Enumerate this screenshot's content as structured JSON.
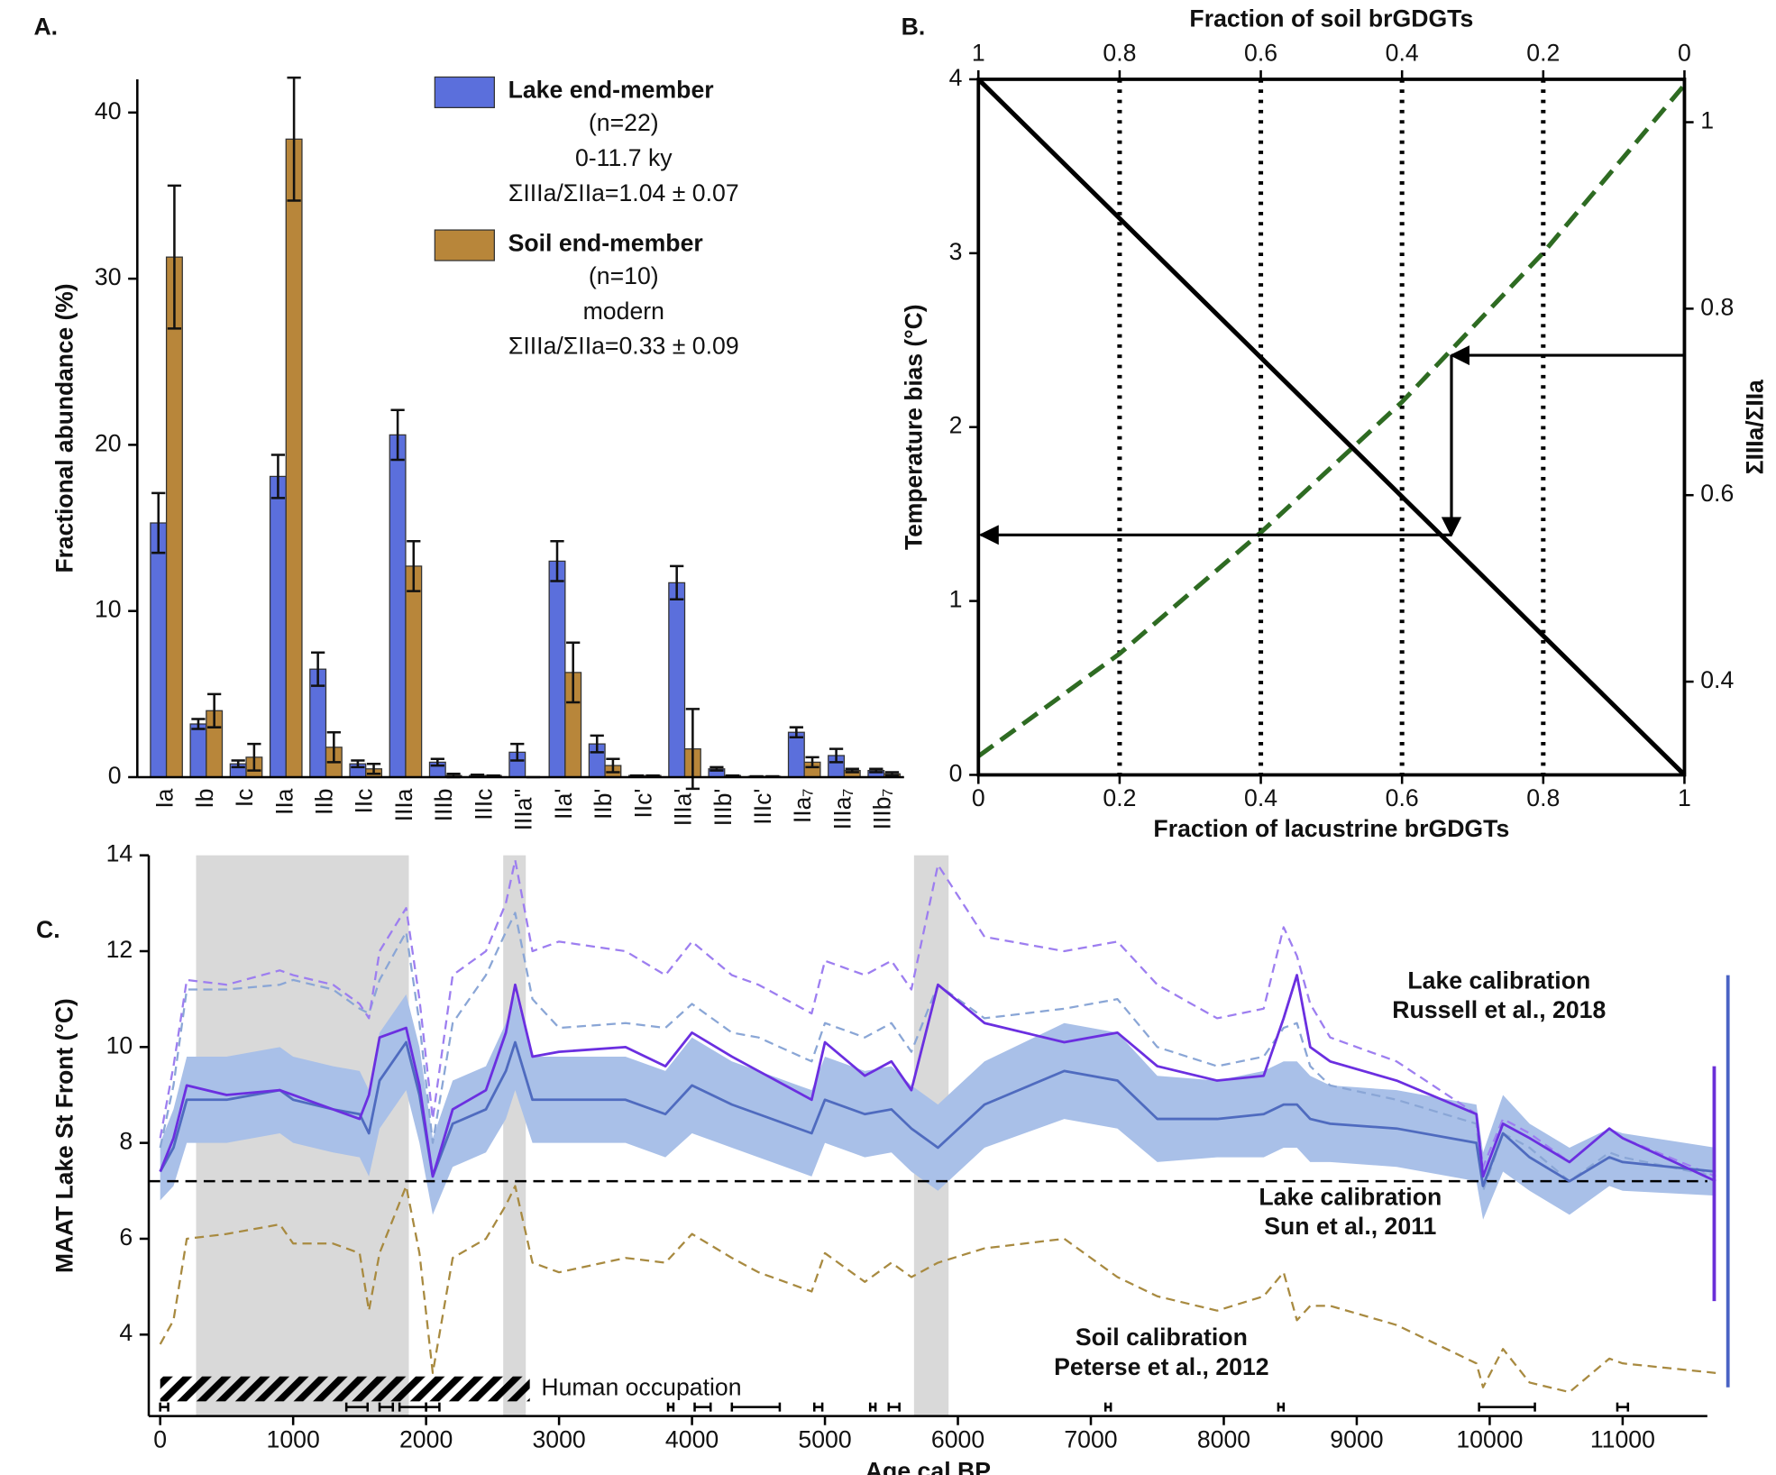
{
  "chart_data": [
    {
      "type": "bar",
      "panel": "A.",
      "ylabel": "Fractional abundance (%)",
      "categories": [
        "Ia",
        "Ib",
        "Ic",
        "IIa",
        "IIb",
        "IIc",
        "IIIa",
        "IIIb",
        "IIIc",
        "IIIa''",
        "IIa'",
        "IIb'",
        "IIc'",
        "IIIa'",
        "IIIb'",
        "IIIc'",
        "IIa₇",
        "IIIa₇",
        "IIIb₇"
      ],
      "series": [
        {
          "name": "Lake end-member",
          "details": [
            "(n=22)",
            "0-11.7 ky",
            "ΣIIIa/ΣIIa=1.04 ± 0.07"
          ],
          "color": "#5b6fdc",
          "values": [
            15.3,
            3.2,
            0.8,
            18.1,
            6.5,
            0.8,
            20.6,
            0.9,
            0.1,
            1.5,
            13.0,
            2.0,
            0.1,
            11.7,
            0.5,
            0.05,
            2.7,
            1.3,
            0.4
          ],
          "errors": [
            1.8,
            0.3,
            0.2,
            1.3,
            1.0,
            0.2,
            1.5,
            0.2,
            0.05,
            0.5,
            1.2,
            0.5,
            0,
            1.0,
            0.1,
            0,
            0.3,
            0.4,
            0.1
          ]
        },
        {
          "name": "Soil end-member",
          "details": [
            "(n=10)",
            "modern",
            "ΣIIIa/ΣIIa=0.33 ± 0.09"
          ],
          "color": "#b8863a",
          "values": [
            31.3,
            4.0,
            1.2,
            38.4,
            1.8,
            0.5,
            12.7,
            0.1,
            0.1,
            0,
            6.3,
            0.7,
            0.1,
            1.7,
            0.1,
            0.05,
            0.9,
            0.4,
            0.2
          ],
          "errors": [
            4.3,
            1.0,
            0.8,
            3.7,
            0.9,
            0.3,
            1.5,
            0.1,
            0,
            0,
            1.8,
            0.4,
            0,
            2.4,
            0,
            0,
            0.3,
            0.1,
            0.1
          ]
        }
      ],
      "ylim": [
        0,
        42
      ],
      "yticks": [
        0,
        10,
        20,
        30,
        40
      ]
    },
    {
      "type": "line",
      "panel": "B.",
      "frame": true,
      "grid": "dotted",
      "xlabel": "Fraction of lacustrine brGDGTs",
      "x2label": "Fraction of soil brGDGTs",
      "ylabel": "Temperature bias (°C)",
      "y2label": "ΣIIIa/ΣIIa",
      "y2color": "#2e6b22",
      "x": [
        0,
        0.2,
        0.4,
        0.6,
        0.8,
        1
      ],
      "series": [
        {
          "color": "#000000",
          "values": [
            4,
            3.2,
            2.4,
            1.6,
            0.8,
            0
          ]
        },
        {
          "color": "#2e6b22",
          "dash": true,
          "axis": "y2",
          "values": [
            0.32,
            0.43,
            0.56,
            0.7,
            0.86,
            1.04
          ]
        }
      ],
      "xlim": [
        0,
        1
      ],
      "xticks": [
        0,
        0.2,
        0.4,
        0.6,
        0.8,
        1
      ],
      "x2lim": [
        1,
        0
      ],
      "x2ticks": [
        1,
        0.8,
        0.6,
        0.4,
        0.2,
        0
      ],
      "ylim": [
        0,
        4
      ],
      "yticks": [
        0,
        1,
        2,
        3,
        4
      ],
      "y2lim": [
        0.3,
        1.046
      ],
      "y2ticks": [
        0.4,
        0.6,
        0.8,
        1
      ],
      "arrow": {
        "y2": 0.75,
        "x": 0.67,
        "y": 1.38
      }
    },
    {
      "type": "line",
      "panel": "C.",
      "xlabel": "Age cal BP",
      "ylabel": "MAAT Lake St Front (°C)",
      "x": [
        0,
        100,
        200,
        500,
        900,
        1000,
        1300,
        1500,
        1570,
        1650,
        1850,
        1950,
        2050,
        2200,
        2450,
        2600,
        2670,
        2800,
        3000,
        3500,
        3800,
        4000,
        4300,
        4500,
        4900,
        5000,
        5300,
        5500,
        5650,
        5850,
        6200,
        6800,
        7200,
        7500,
        7950,
        8300,
        8450,
        8550,
        8650,
        8800,
        9300,
        9900,
        9950,
        10100,
        10300,
        10600,
        10900,
        11000,
        11700
      ],
      "series": [
        {
          "label_lines": [
            "Lake calibration",
            "Sun et al., 2011"
          ],
          "color": "#4f6bbf",
          "band_color": "#a9c0e8",
          "values": [
            7.4,
            7.9,
            8.9,
            8.9,
            9.1,
            8.9,
            8.7,
            8.6,
            8.2,
            9.3,
            10.1,
            9.0,
            7.3,
            8.4,
            8.7,
            9.5,
            10.1,
            8.9,
            8.9,
            8.9,
            8.6,
            9.2,
            8.8,
            8.6,
            8.2,
            8.9,
            8.6,
            8.7,
            8.3,
            7.9,
            8.8,
            9.5,
            9.3,
            8.5,
            8.5,
            8.6,
            8.8,
            8.8,
            8.5,
            8.4,
            8.3,
            8.0,
            7.1,
            8.2,
            7.7,
            7.2,
            7.7,
            7.6,
            7.4
          ],
          "errors": [
            0.6,
            0.8,
            0.9,
            0.9,
            0.9,
            0.9,
            0.9,
            0.9,
            0.9,
            1.0,
            1.0,
            1.0,
            0.8,
            0.9,
            0.9,
            1.0,
            1.0,
            0.9,
            0.9,
            0.9,
            0.9,
            1.0,
            0.9,
            0.9,
            0.9,
            0.9,
            0.9,
            0.9,
            0.9,
            0.9,
            0.9,
            1.0,
            1.0,
            0.9,
            0.8,
            0.9,
            0.9,
            0.9,
            0.9,
            0.8,
            0.8,
            0.8,
            0.7,
            0.8,
            0.7,
            0.7,
            0.6,
            0.6,
            0.5
          ]
        },
        {
          "color": "#8aa6d6",
          "dash": true,
          "values": [
            7.9,
            9.2,
            11.2,
            11.2,
            11.3,
            11.4,
            11.2,
            10.8,
            10.7,
            11.4,
            12.4,
            10.5,
            8.0,
            10.5,
            11.5,
            12.4,
            12.8,
            11.0,
            10.4,
            10.5,
            10.4,
            10.9,
            10.3,
            10.2,
            9.7,
            10.5,
            10.2,
            10.5,
            9.9,
            11.3,
            10.6,
            10.8,
            11.0,
            10.0,
            9.6,
            9.8,
            10.4,
            10.5,
            9.6,
            9.2,
            8.9,
            8.4,
            7.0,
            8.2,
            7.9,
            7.2,
            7.8,
            7.7,
            7.3
          ]
        },
        {
          "color": "#9d7ef0",
          "dash": true,
          "values": [
            8.1,
            9.6,
            11.4,
            11.3,
            11.6,
            11.5,
            11.3,
            10.9,
            10.6,
            12.0,
            12.9,
            11.0,
            8.5,
            11.5,
            12.0,
            13.0,
            13.9,
            12.0,
            12.2,
            12.0,
            11.5,
            12.2,
            11.5,
            11.3,
            10.7,
            11.8,
            11.5,
            11.8,
            11.2,
            13.8,
            12.3,
            12.0,
            12.2,
            11.3,
            10.6,
            10.8,
            12.5,
            11.9,
            10.9,
            10.2,
            9.7,
            8.6,
            7.5,
            8.5,
            8.2,
            7.6,
            8.3,
            8.1,
            7.3
          ]
        },
        {
          "label_lines": [
            "Lake calibration",
            "Russell et al., 2018"
          ],
          "color": "#6b2fe0",
          "values": [
            7.4,
            8.1,
            9.2,
            9.0,
            9.1,
            9.0,
            8.7,
            8.5,
            9.0,
            10.2,
            10.4,
            9.2,
            7.3,
            8.7,
            9.1,
            10.3,
            11.3,
            9.8,
            9.9,
            10.0,
            9.6,
            10.3,
            9.8,
            9.5,
            8.9,
            10.1,
            9.4,
            9.7,
            9.1,
            11.3,
            10.5,
            10.1,
            10.3,
            9.6,
            9.3,
            9.4,
            10.6,
            11.5,
            10.0,
            9.7,
            9.3,
            8.6,
            7.3,
            8.4,
            8.1,
            7.6,
            8.3,
            8.1,
            7.2
          ]
        },
        {
          "label_lines": [
            "Soil calibration",
            "Peterse et al., 2012"
          ],
          "color": "#a88a40",
          "dash": true,
          "values": [
            3.8,
            4.3,
            6.0,
            6.1,
            6.3,
            5.9,
            5.9,
            5.7,
            4.5,
            5.7,
            7.1,
            5.7,
            3.2,
            5.6,
            6.0,
            6.7,
            7.1,
            5.5,
            5.3,
            5.6,
            5.5,
            6.1,
            5.6,
            5.3,
            4.9,
            5.7,
            5.1,
            5.5,
            5.2,
            5.5,
            5.8,
            6.0,
            5.2,
            4.8,
            4.5,
            4.8,
            5.3,
            4.3,
            4.6,
            4.6,
            4.2,
            3.4,
            2.9,
            3.7,
            3.0,
            2.8,
            3.5,
            3.4,
            3.2
          ]
        }
      ],
      "shading": [
        [
          270,
          1870
        ],
        [
          2580,
          2750
        ],
        [
          5670,
          5930
        ]
      ],
      "reference": 7.2,
      "occupation": {
        "label": "Human occupation",
        "start": 0,
        "end": 2780
      },
      "age_controls": {
        "x": [
          30,
          1480,
          1700,
          1900,
          2050,
          3840,
          4080,
          4480,
          4950,
          5360,
          5520,
          7130,
          8430,
          10130,
          11000
        ],
        "errors": [
          30,
          80,
          50,
          100,
          50,
          20,
          60,
          180,
          30,
          20,
          40,
          20,
          20,
          210,
          40
        ]
      },
      "ranges": [
        {
          "color": "#4a63c4",
          "values": [
            2.9,
            11.5
          ]
        },
        {
          "color": "#6a2fd8",
          "values": [
            4.7,
            9.6
          ]
        }
      ],
      "xlim": [
        -86,
        11637
      ],
      "xticks": [
        0,
        1000,
        2000,
        3000,
        4000,
        5000,
        6000,
        7000,
        8000,
        9000,
        10000,
        11000
      ],
      "ylim": [
        2.3,
        14
      ],
      "yticks": [
        4,
        6,
        8,
        10,
        12,
        14
      ]
    }
  ]
}
